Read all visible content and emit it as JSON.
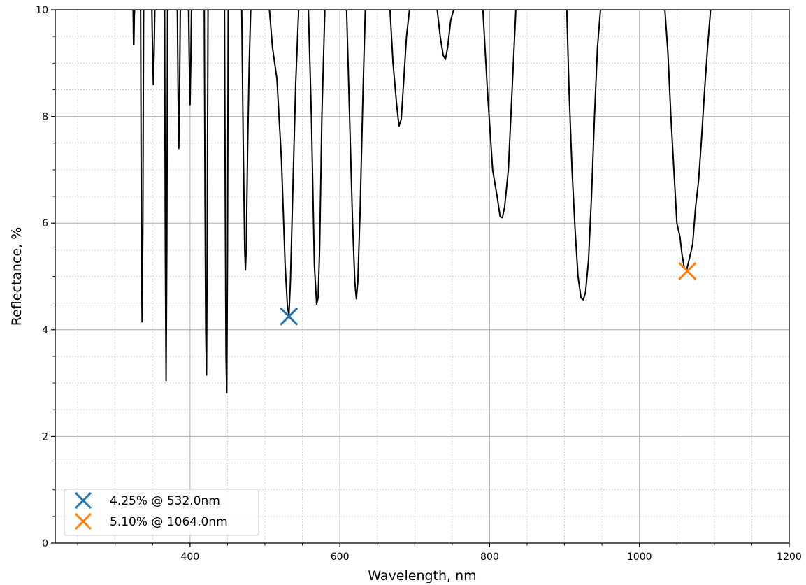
{
  "chart_data": {
    "type": "line",
    "xlabel": "Wavelength, nm",
    "ylabel": "Reflectance, %",
    "xlim": [
      220,
      1200
    ],
    "ylim": [
      0,
      10
    ],
    "x_ticks": [
      400,
      600,
      800,
      1000,
      1200
    ],
    "y_ticks": [
      0,
      2,
      4,
      6,
      8,
      10
    ],
    "x_minor_step": 50,
    "y_minor_step": 0.5,
    "grid": true,
    "legend_position": "lower-left",
    "colors": {
      "line": "#000000",
      "marker_1": "#1f77b4",
      "marker_2": "#ff7f0e",
      "grid": "#b0b0b0"
    },
    "series": [
      {
        "values_note_free": true,
        "x": [
          324,
          324.6,
          325,
          325.6,
          326,
          334,
          335,
          336,
          337,
          338,
          349,
          350,
          351,
          352,
          353,
          366,
          367,
          368,
          369,
          370,
          383,
          384,
          385,
          386,
          387,
          398,
          399,
          400,
          401,
          402,
          419,
          420,
          421,
          422,
          423,
          424,
          446,
          447,
          448,
          449,
          450,
          451,
          469,
          471,
          473,
          474,
          475,
          477,
          479,
          481,
          506,
          510,
          516,
          522,
          527,
          530,
          532,
          534,
          537,
          541,
          545,
          558,
          562,
          566,
          569,
          571,
          573,
          576,
          580,
          609,
          613,
          617,
          620,
          622,
          624,
          627,
          631,
          634,
          667,
          671,
          676,
          679,
          682,
          685,
          689,
          693,
          730,
          734,
          738,
          741,
          744,
          748,
          752,
          791,
          797,
          804,
          810,
          814,
          817,
          820,
          825,
          830,
          835,
          903,
          906,
          910,
          914,
          918,
          922,
          925,
          928,
          932,
          936,
          940,
          944,
          948,
          1034,
          1038,
          1042,
          1046,
          1050,
          1054,
          1057,
          1060,
          1063,
          1067,
          1071,
          1075,
          1079,
          1083,
          1087,
          1091,
          1095
        ],
        "values": [
          10,
          9.35,
          9.35,
          9.9,
          10,
          10,
          6,
          4.15,
          6,
          10,
          10,
          9.2,
          8.6,
          9.2,
          10,
          10,
          5.5,
          3.05,
          5.5,
          10,
          10,
          8.5,
          7.4,
          8.5,
          10,
          10,
          9,
          8.22,
          9,
          10,
          10,
          6.5,
          4,
          3.15,
          6,
          10,
          10,
          6.5,
          3.5,
          2.82,
          5.5,
          10,
          10,
          7.5,
          5.5,
          5.12,
          5.5,
          7.5,
          9,
          10,
          10,
          9.3,
          8.7,
          7.2,
          5.2,
          4.45,
          4.27,
          4.9,
          6.5,
          8.6,
          10,
          10,
          8,
          5.2,
          4.48,
          4.6,
          5.5,
          8,
          10,
          10,
          8,
          6,
          4.9,
          4.58,
          4.9,
          6.2,
          8.5,
          10,
          10,
          9,
          8.2,
          7.82,
          7.95,
          8.6,
          9.5,
          10,
          10,
          9.5,
          9.15,
          9.07,
          9.3,
          9.8,
          10,
          10,
          8.5,
          7,
          6.5,
          6.12,
          6.1,
          6.3,
          7,
          8.5,
          10,
          10,
          8.5,
          7,
          5.9,
          5,
          4.6,
          4.56,
          4.7,
          5.3,
          6.5,
          8,
          9.3,
          10,
          10,
          9.2,
          8,
          7,
          6,
          5.75,
          5.4,
          5.15,
          5.12,
          5.35,
          5.6,
          6.3,
          6.8,
          7.6,
          8.5,
          9.3,
          10
        ]
      }
    ],
    "markers": [
      {
        "label": "4.25% @ 532.0nm",
        "x": 532.0,
        "y": 4.25,
        "color": "#1f77b4"
      },
      {
        "label": "5.10% @ 1064.0nm",
        "x": 1064.0,
        "y": 5.1,
        "color": "#ff7f0e"
      }
    ]
  }
}
